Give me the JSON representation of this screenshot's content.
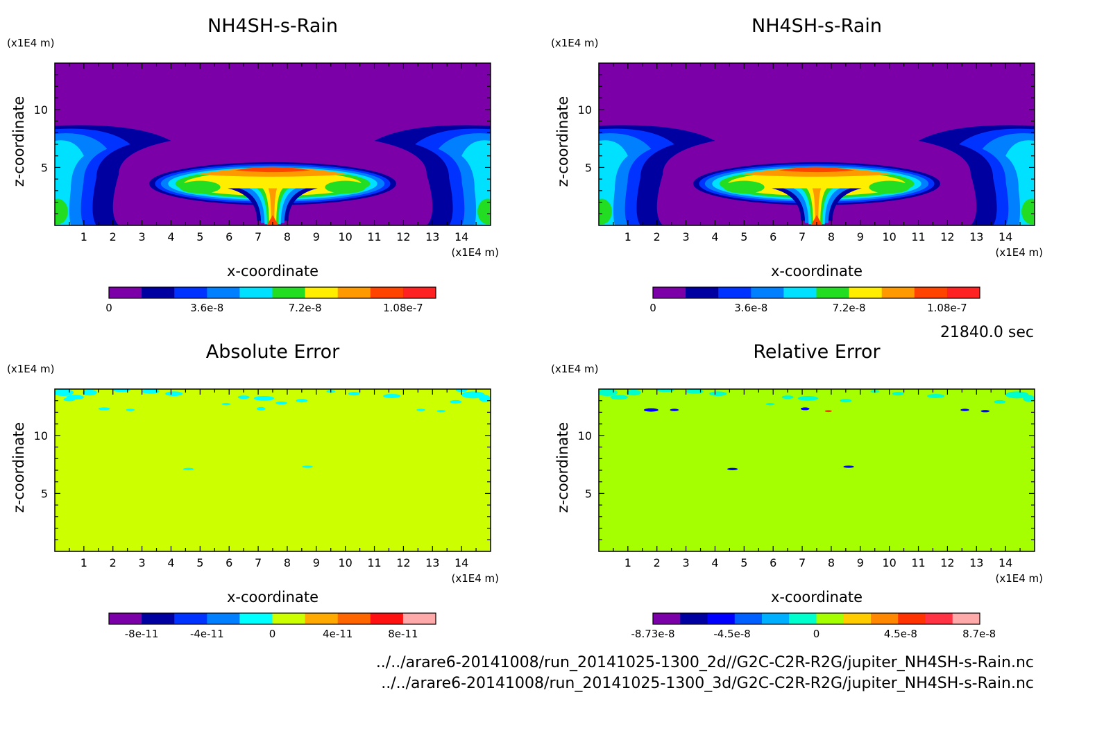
{
  "time_label": "21840.0 sec",
  "footer": {
    "line1": "../../arare6-20141008/run_20141025-1300_2d//G2C-C2R-R2G/jupiter_NH4SH-s-Rain.nc",
    "line2": "../../arare6-20141008/run_20141025-1300_3d/G2C-C2R-R2G/jupiter_NH4SH-s-Rain.nc"
  },
  "colors": {
    "base_purple": "#7B00A8",
    "abs_field": "#CCFF00",
    "rel_field": "#A6FF00"
  },
  "chart_data": [
    {
      "type": "heatmap",
      "title": "NH4SH-s-Rain",
      "xlabel": "x-coordinate",
      "ylabel": "z-coordinate",
      "x_unit": "(x1E4 m)",
      "y_unit": "(x1E4 m)",
      "xlim": [
        0,
        15
      ],
      "ylim": [
        0,
        14
      ],
      "xticks": [
        "1",
        "2",
        "3",
        "4",
        "5",
        "6",
        "7",
        "8",
        "9",
        "10",
        "11",
        "12",
        "13",
        "14"
      ],
      "yticks": [
        "5",
        "10"
      ],
      "colorbar": {
        "colors": [
          "#7B00A8",
          "#0000A0",
          "#0033FF",
          "#0080FF",
          "#00E0FF",
          "#22DD22",
          "#FFEE00",
          "#FF9900",
          "#FF4400",
          "#FF2222"
        ],
        "tick_labels": [
          "0",
          "3.6e-8",
          "7.2e-8",
          "1.08e-7"
        ],
        "tick_values": [
          0,
          3.6e-08,
          7.2e-08,
          1.08e-07
        ],
        "vmin": 0,
        "vmax": 1.2e-07
      }
    },
    {
      "type": "heatmap",
      "title": "NH4SH-s-Rain",
      "xlabel": "x-coordinate",
      "ylabel": "z-coordinate",
      "x_unit": "(x1E4 m)",
      "y_unit": "(x1E4 m)",
      "xlim": [
        0,
        15
      ],
      "ylim": [
        0,
        14
      ],
      "xticks": [
        "1",
        "2",
        "3",
        "4",
        "5",
        "6",
        "7",
        "8",
        "9",
        "10",
        "11",
        "12",
        "13",
        "14"
      ],
      "yticks": [
        "5",
        "10"
      ],
      "colorbar": {
        "colors": [
          "#7B00A8",
          "#0000A0",
          "#0033FF",
          "#0080FF",
          "#00E0FF",
          "#22DD22",
          "#FFEE00",
          "#FF9900",
          "#FF4400",
          "#FF2222"
        ],
        "tick_labels": [
          "0",
          "3.6e-8",
          "7.2e-8",
          "1.08e-7"
        ],
        "tick_values": [
          0,
          3.6e-08,
          7.2e-08,
          1.08e-07
        ],
        "vmin": 0,
        "vmax": 1.2e-07
      }
    },
    {
      "type": "heatmap",
      "title": "Absolute Error",
      "xlabel": "x-coordinate",
      "ylabel": "z-coordinate",
      "x_unit": "(x1E4 m)",
      "y_unit": "(x1E4 m)",
      "xlim": [
        0,
        15
      ],
      "ylim": [
        0,
        14
      ],
      "xticks": [
        "1",
        "2",
        "3",
        "4",
        "5",
        "6",
        "7",
        "8",
        "9",
        "10",
        "11",
        "12",
        "13",
        "14"
      ],
      "yticks": [
        "5",
        "10"
      ],
      "dominant_value": 0,
      "colorbar": {
        "colors": [
          "#7B00A8",
          "#0000A0",
          "#0033FF",
          "#0080FF",
          "#00FFFF",
          "#CCFF00",
          "#FFAA00",
          "#FF6600",
          "#FF1111",
          "#FFAAAA"
        ],
        "tick_labels": [
          "-8e-11",
          "-4e-11",
          "0",
          "4e-11",
          "8e-11"
        ],
        "tick_values": [
          -8e-11,
          -4e-11,
          0,
          4e-11,
          8e-11
        ],
        "vmin": -1e-10,
        "vmax": 1e-10
      }
    },
    {
      "type": "heatmap",
      "title": "Relative Error",
      "xlabel": "x-coordinate",
      "ylabel": "z-coordinate",
      "x_unit": "(x1E4 m)",
      "y_unit": "(x1E4 m)",
      "xlim": [
        0,
        15
      ],
      "ylim": [
        0,
        14
      ],
      "xticks": [
        "1",
        "2",
        "3",
        "4",
        "5",
        "6",
        "7",
        "8",
        "9",
        "10",
        "11",
        "12",
        "13",
        "14"
      ],
      "yticks": [
        "5",
        "10"
      ],
      "dominant_value": 0,
      "colorbar": {
        "colors": [
          "#7B00A8",
          "#0000A0",
          "#0000FF",
          "#0060FF",
          "#00B0FF",
          "#00FFCC",
          "#A6FF00",
          "#FFCC00",
          "#FF8800",
          "#FF3300",
          "#FF3344",
          "#FFAAAA"
        ],
        "tick_labels": [
          "-8.73e-8",
          "-4.5e-8",
          "0",
          "4.5e-8",
          "8.7e-8"
        ],
        "tick_values": [
          -8.73e-08,
          -4.5e-08,
          0,
          4.5e-08,
          8.7e-08
        ],
        "vmin": -8.73e-08,
        "vmax": 8.73e-08
      }
    }
  ]
}
